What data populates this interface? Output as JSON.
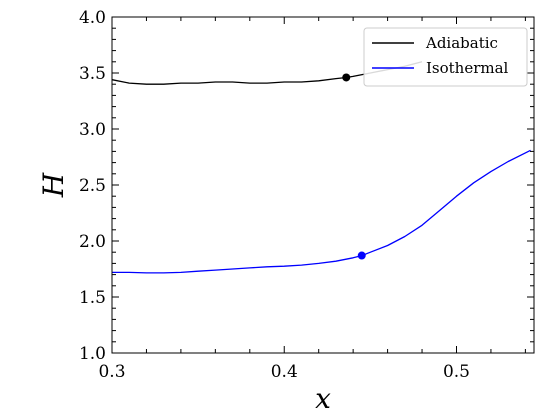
{
  "chart_data": {
    "type": "line",
    "xlabel": "x",
    "ylabel": "H",
    "xlim": [
      0.3,
      0.545
    ],
    "ylim": [
      1.0,
      4.0
    ],
    "xticks": [
      0.3,
      0.4,
      0.5
    ],
    "xtick_labels": [
      "0.3",
      "0.4",
      "0.5"
    ],
    "yticks": [
      1.0,
      1.5,
      2.0,
      2.5,
      3.0,
      3.5,
      4.0
    ],
    "ytick_labels": [
      "1.0",
      "1.5",
      "2.0",
      "2.5",
      "3.0",
      "3.5",
      "4.0"
    ],
    "grid": false,
    "legend": {
      "location": "top-right"
    },
    "series": [
      {
        "name": "Adiabatic",
        "color": "#000000",
        "x": [
          0.3,
          0.31,
          0.32,
          0.33,
          0.34,
          0.35,
          0.36,
          0.37,
          0.38,
          0.39,
          0.4,
          0.41,
          0.42,
          0.43,
          0.436,
          0.44,
          0.45,
          0.46,
          0.47,
          0.48
        ],
        "y": [
          3.44,
          3.41,
          3.4,
          3.4,
          3.41,
          3.41,
          3.42,
          3.42,
          3.41,
          3.41,
          3.42,
          3.42,
          3.43,
          3.45,
          3.46,
          3.47,
          3.5,
          3.53,
          3.56,
          3.6
        ],
        "marker": {
          "x": 0.436,
          "y": 3.46
        }
      },
      {
        "name": "Isothermal",
        "color": "#0000ff",
        "x": [
          0.3,
          0.31,
          0.32,
          0.33,
          0.34,
          0.35,
          0.36,
          0.37,
          0.38,
          0.39,
          0.4,
          0.41,
          0.42,
          0.43,
          0.44,
          0.445,
          0.45,
          0.46,
          0.47,
          0.48,
          0.49,
          0.5,
          0.51,
          0.52,
          0.53,
          0.543
        ],
        "y": [
          1.72,
          1.72,
          1.715,
          1.715,
          1.72,
          1.73,
          1.74,
          1.75,
          1.76,
          1.77,
          1.775,
          1.785,
          1.8,
          1.82,
          1.85,
          1.87,
          1.9,
          1.96,
          2.04,
          2.14,
          2.27,
          2.4,
          2.52,
          2.62,
          2.71,
          2.81
        ],
        "marker": {
          "x": 0.445,
          "y": 1.87
        }
      }
    ]
  }
}
